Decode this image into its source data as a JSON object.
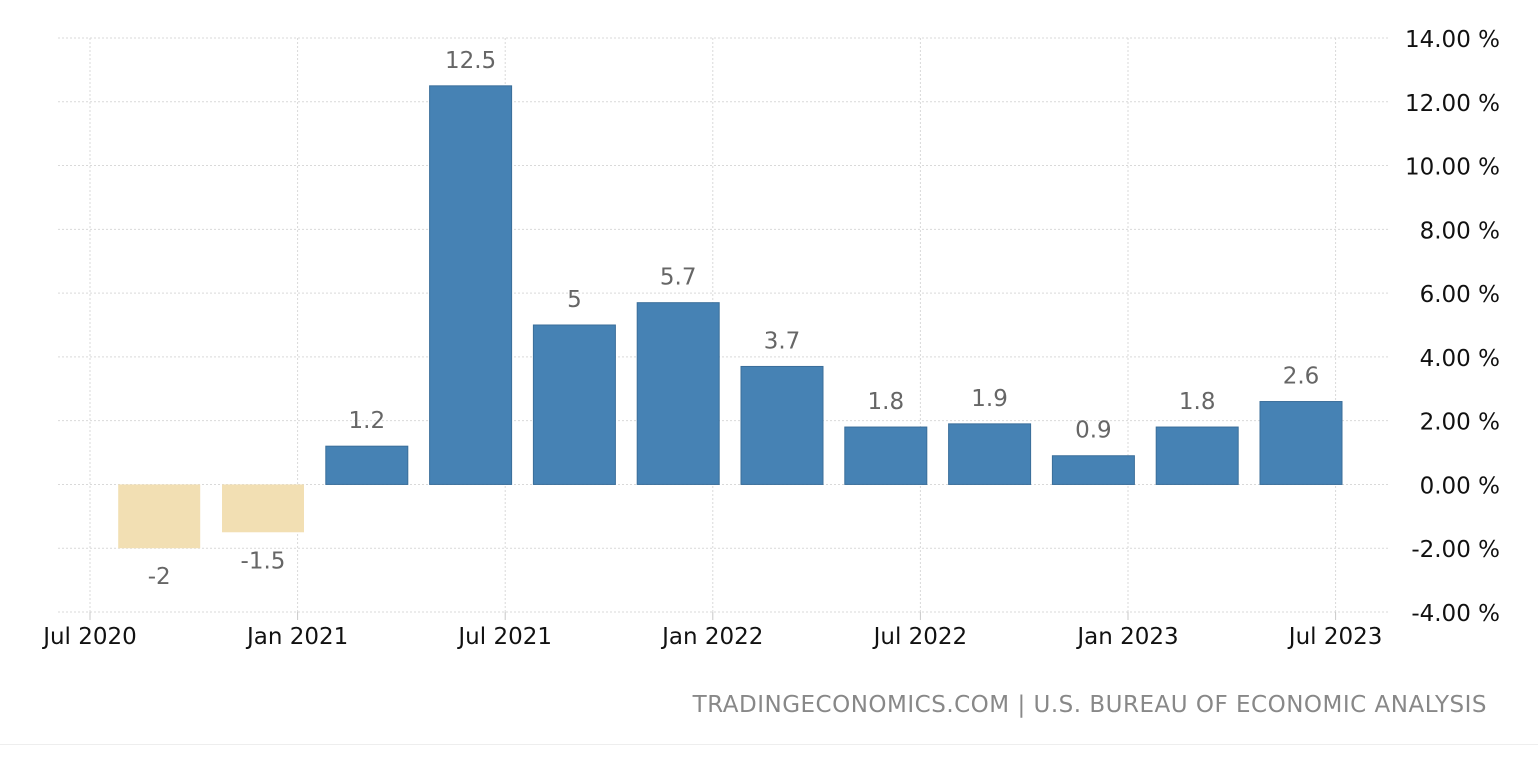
{
  "chart_data": {
    "type": "bar",
    "categories": [
      "Sep 2020",
      "Dec 2020",
      "Mar 2021",
      "Jun 2021",
      "Sep 2021",
      "Dec 2021",
      "Mar 2022",
      "Jun 2022",
      "Sep 2022",
      "Dec 2022",
      "Mar 2023",
      "Jun 2023"
    ],
    "values": [
      -2,
      -1.5,
      1.2,
      12.5,
      5,
      5.7,
      3.7,
      1.8,
      1.9,
      0.9,
      1.8,
      2.6
    ],
    "value_labels": [
      "-2",
      "-1.5",
      "1.2",
      "12.5",
      "5",
      "5.7",
      "3.7",
      "1.8",
      "1.9",
      "0.9",
      "1.8",
      "2.6"
    ],
    "x_ticks": [
      "Jul 2020",
      "Jan 2021",
      "Jul 2021",
      "Jan 2022",
      "Jul 2022",
      "Jan 2023",
      "Jul 2023"
    ],
    "y_ticks": [
      "14.00 %",
      "12.00 %",
      "10.00 %",
      "8.00 %",
      "6.00 %",
      "4.00 %",
      "2.00 %",
      "0.00 %",
      "-2.00 %",
      "-4.00 %"
    ],
    "ylim": [
      -4,
      14
    ],
    "grid": true,
    "colors": {
      "positive": "#4682b4",
      "negative": "#f2dfb3",
      "grid": "#d9d9d9",
      "axis_text": "#111111",
      "label_text": "#666666",
      "source_text": "#888888"
    },
    "title": "",
    "xlabel": "",
    "ylabel": ""
  },
  "source": "TRADINGECONOMICS.COM | U.S. BUREAU OF ECONOMIC ANALYSIS"
}
